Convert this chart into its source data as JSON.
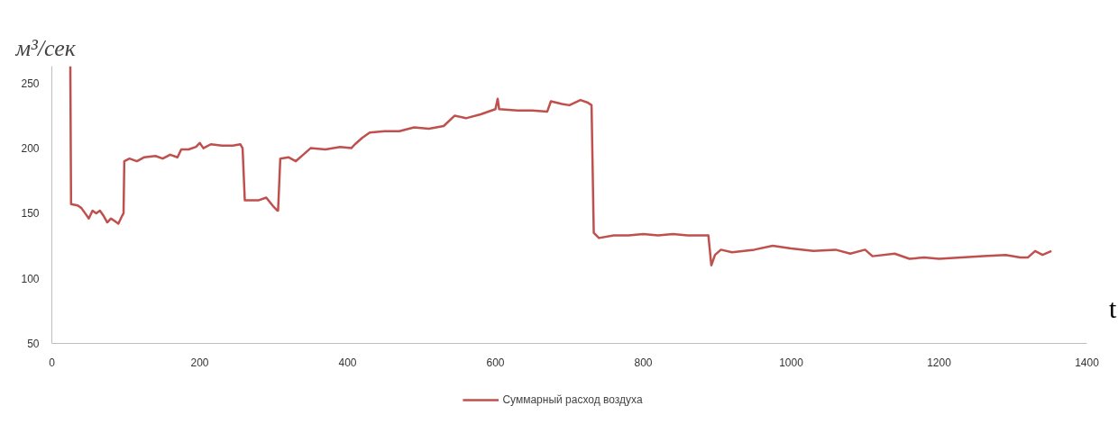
{
  "chart_data": {
    "type": "line",
    "xlabel": "t",
    "ylabel": "м³/сек",
    "xlim": [
      0,
      1400
    ],
    "ylim": [
      50,
      263
    ],
    "xticks": [
      0,
      200,
      400,
      600,
      800,
      1000,
      1200,
      1400
    ],
    "yticks": [
      50,
      100,
      150,
      200,
      250
    ],
    "grid": false,
    "legend": "bottom",
    "series": [
      {
        "name": "Суммарный расход воздуха",
        "color": "#c0504d",
        "x": [
          25,
          26,
          35,
          40,
          45,
          50,
          55,
          60,
          65,
          70,
          75,
          80,
          85,
          90,
          95,
          97,
          98,
          105,
          115,
          125,
          140,
          150,
          160,
          170,
          175,
          185,
          195,
          200,
          205,
          215,
          230,
          245,
          255,
          258,
          261,
          270,
          280,
          290,
          300,
          305,
          306,
          309,
          320,
          330,
          340,
          350,
          370,
          390,
          405,
          410,
          420,
          430,
          450,
          470,
          490,
          510,
          530,
          545,
          560,
          580,
          600,
          603,
          605,
          630,
          650,
          670,
          675,
          690,
          700,
          715,
          725,
          730,
          733,
          740,
          760,
          780,
          800,
          820,
          840,
          860,
          880,
          888,
          892,
          897,
          905,
          920,
          950,
          975,
          1000,
          1030,
          1060,
          1080,
          1100,
          1110,
          1140,
          1160,
          1180,
          1200,
          1230,
          1260,
          1290,
          1310,
          1320,
          1330,
          1340,
          1352
        ],
        "values": [
          263,
          157,
          156,
          154,
          150,
          146,
          152,
          150,
          152,
          148,
          143,
          146,
          144,
          142,
          148,
          150,
          190,
          192,
          190,
          193,
          194,
          192,
          195,
          193,
          199,
          199,
          201,
          204,
          200,
          203,
          202,
          202,
          203,
          200,
          160,
          160,
          160,
          162,
          155,
          152,
          152,
          192,
          193,
          190,
          195,
          200,
          199,
          201,
          200,
          203,
          208,
          212,
          213,
          213,
          216,
          215,
          217,
          225,
          223,
          226,
          230,
          238,
          230,
          229,
          229,
          228,
          236,
          234,
          233,
          237,
          235,
          233,
          135,
          131,
          133,
          133,
          134,
          133,
          134,
          133,
          133,
          133,
          110,
          118,
          122,
          120,
          122,
          125,
          123,
          121,
          122,
          119,
          122,
          117,
          119,
          115,
          116,
          115,
          116,
          117,
          118,
          116,
          116,
          121,
          118,
          121
        ]
      }
    ]
  }
}
